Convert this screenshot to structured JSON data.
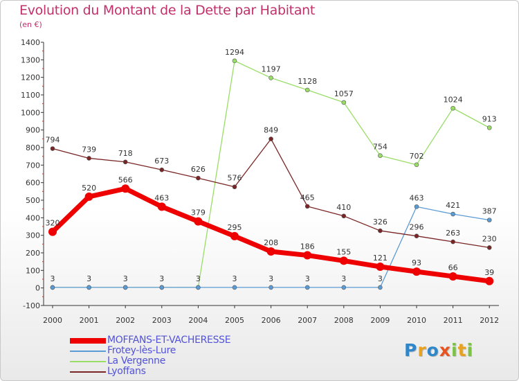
{
  "chart_data": {
    "type": "line",
    "title": "Evolution du Montant de la Dette par Habitant",
    "subtitle": "(en €)",
    "x": [
      "2000",
      "2001",
      "2002",
      "2003",
      "2004",
      "2005",
      "2006",
      "2007",
      "2008",
      "2009",
      "2010",
      "2011",
      "2012"
    ],
    "ylim": [
      -100,
      1400
    ],
    "yticks": [
      "-100",
      "0",
      "100",
      "200",
      "300",
      "400",
      "500",
      "600",
      "700",
      "800",
      "900",
      "1000",
      "1100",
      "1200",
      "1300",
      "1400"
    ],
    "grid": false,
    "legend_position": "bottom-left",
    "series": [
      {
        "name": "MOFFANS-ET-VACHERESSE",
        "color": "#ee0000",
        "values": [
          320,
          520,
          566,
          463,
          379,
          295,
          208,
          186,
          155,
          121,
          93,
          66,
          39
        ],
        "labels": [
          "320",
          "520",
          "566",
          "463",
          "379",
          "295",
          "208",
          "186",
          "155",
          "121",
          "93",
          "66",
          "39"
        ]
      },
      {
        "name": "Frotey-lès-Lure",
        "color": "#5b9bd5",
        "values": [
          3,
          3,
          3,
          3,
          3,
          3,
          3,
          3,
          3,
          3,
          463,
          421,
          387
        ],
        "labels": [
          "3",
          "3",
          "3",
          "3",
          "3",
          "3",
          "3",
          "3",
          "3",
          "3",
          "463",
          "421",
          "387"
        ]
      },
      {
        "name": "La Vergenne",
        "color": "#99dd66",
        "values": [
          3,
          3,
          3,
          3,
          3,
          1294,
          1197,
          1128,
          1057,
          754,
          702,
          1024,
          913
        ],
        "labels": [
          "3",
          "3",
          "3",
          "3",
          "3",
          "1294",
          "1197",
          "1128",
          "1057",
          "754",
          "702",
          "1024",
          "913"
        ]
      },
      {
        "name": "Lyoffans",
        "color": "#7a2525",
        "values": [
          794,
          739,
          718,
          673,
          626,
          576,
          849,
          465,
          410,
          326,
          296,
          263,
          230
        ],
        "labels": [
          "794",
          "739",
          "718",
          "673",
          "626",
          "576",
          "849",
          "465",
          "410",
          "326",
          "296",
          "263",
          "230"
        ]
      }
    ]
  },
  "brand": {
    "letters": [
      {
        "ch": "P",
        "color": "#2f86c8"
      },
      {
        "ch": "r",
        "color": "#e8a21f"
      },
      {
        "ch": "o",
        "color": "#2f86c8"
      },
      {
        "ch": "x",
        "color": "#e8521f"
      },
      {
        "ch": "i",
        "color": "#7cc244"
      },
      {
        "ch": "t",
        "color": "#e8a21f"
      },
      {
        "ch": "i",
        "color": "#7cc244"
      }
    ]
  }
}
